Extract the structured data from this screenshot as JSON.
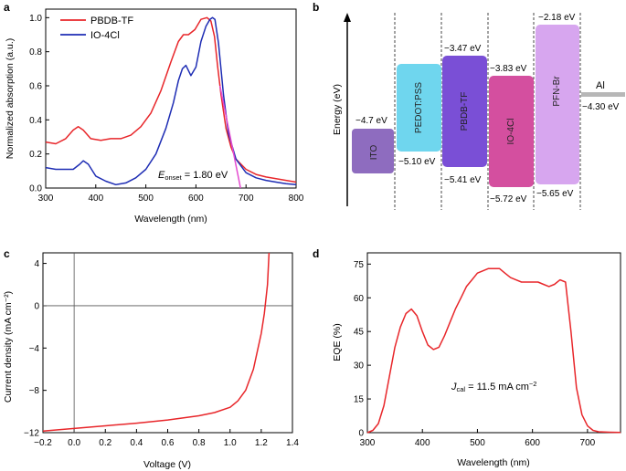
{
  "panels": {
    "a": "a",
    "b": "b",
    "c": "c",
    "d": "d"
  },
  "colors": {
    "pbdb": "#e8262a",
    "io4cl": "#1e2db4",
    "fit": "#e44bd0",
    "curve_c": "#e8262a",
    "curve_d": "#e8262a"
  },
  "chart_data": [
    {
      "panel": "a",
      "type": "line",
      "xlabel": "Wavelength (nm)",
      "ylabel": "Normalized absorption (a.u.)",
      "xlim": [
        300,
        800
      ],
      "ylim": [
        0,
        1.05
      ],
      "xticks": [
        "300",
        "400",
        "500",
        "600",
        "700",
        "800"
      ],
      "yticks": [
        "0.0",
        "0.2",
        "0.4",
        "0.6",
        "0.8",
        "1.0"
      ],
      "legend_position": "top-left",
      "annotation_main": "E",
      "annotation_sub": "onset",
      "annotation_value": " = 1.80 eV",
      "series": [
        {
          "name": "PBDB-TF",
          "x": [
            300,
            320,
            340,
            355,
            365,
            375,
            390,
            410,
            430,
            450,
            470,
            490,
            510,
            530,
            550,
            565,
            575,
            585,
            598,
            610,
            622,
            630,
            637,
            643,
            650,
            660,
            670,
            680,
            700,
            720,
            740,
            760,
            780,
            800
          ],
          "y": [
            0.27,
            0.26,
            0.29,
            0.34,
            0.36,
            0.34,
            0.29,
            0.28,
            0.29,
            0.29,
            0.31,
            0.36,
            0.44,
            0.57,
            0.74,
            0.86,
            0.9,
            0.9,
            0.93,
            0.99,
            1.0,
            0.98,
            0.89,
            0.72,
            0.55,
            0.35,
            0.24,
            0.17,
            0.11,
            0.08,
            0.065,
            0.055,
            0.045,
            0.035
          ]
        },
        {
          "name": "IO-4Cl",
          "x": [
            300,
            320,
            340,
            355,
            368,
            375,
            385,
            400,
            420,
            440,
            460,
            480,
            500,
            520,
            540,
            555,
            565,
            573,
            580,
            590,
            600,
            610,
            620,
            628,
            633,
            638,
            645,
            655,
            665,
            680,
            700,
            720,
            740,
            760,
            780,
            800
          ],
          "y": [
            0.12,
            0.11,
            0.11,
            0.11,
            0.14,
            0.16,
            0.14,
            0.07,
            0.04,
            0.02,
            0.03,
            0.06,
            0.11,
            0.2,
            0.35,
            0.5,
            0.63,
            0.7,
            0.72,
            0.66,
            0.71,
            0.86,
            0.95,
            0.99,
            1.0,
            0.99,
            0.85,
            0.55,
            0.32,
            0.17,
            0.09,
            0.06,
            0.045,
            0.035,
            0.025,
            0.02
          ]
        },
        {
          "name": "onset-fit",
          "x": [
            648,
            689
          ],
          "y": [
            0.6,
            0.0
          ]
        }
      ]
    },
    {
      "panel": "b",
      "type": "energy-level-diagram",
      "ylabel": "Energy (eV)",
      "electrode": "Al",
      "electrode_level": "−4.30 eV",
      "layers": [
        {
          "name": "ITO",
          "top": -4.7,
          "bottom": null,
          "top_label": "−4.7 eV",
          "bottom_label": "",
          "color": "#8e6cbf"
        },
        {
          "name": "PEDOT:PSS",
          "top": -5.1,
          "bottom": null,
          "top_label": "",
          "bottom_label": "−5.10 eV",
          "color": "#6fd6ee"
        },
        {
          "name": "PBDB-TF",
          "top": -3.47,
          "bottom": -5.41,
          "top_label": "−3.47 eV",
          "bottom_label": "−5.41 eV",
          "color": "#7a4fd6"
        },
        {
          "name": "IO-4Cl",
          "top": -3.83,
          "bottom": -5.72,
          "top_label": "−3.83 eV",
          "bottom_label": "−5.72 eV",
          "color": "#d44f9f"
        },
        {
          "name": "PFN-Br",
          "top": -2.18,
          "bottom": -5.65,
          "top_label": "−2.18 eV",
          "bottom_label": "−5.65 eV",
          "color": "#d7a6ef"
        }
      ]
    },
    {
      "panel": "c",
      "type": "line",
      "xlabel": "Voltage (V)",
      "ylabel": "Current density (mA cm⁻²)",
      "xlim": [
        -0.2,
        1.4
      ],
      "ylim": [
        -12,
        5
      ],
      "xticks": [
        "−0.2",
        "0.0",
        "0.2",
        "0.4",
        "0.6",
        "0.8",
        "1.0",
        "1.2",
        "1.4"
      ],
      "yticks": [
        "−12",
        "−8",
        "−4",
        "0",
        "4"
      ],
      "series": [
        {
          "name": "J-V",
          "x": [
            -0.2,
            0.0,
            0.2,
            0.4,
            0.6,
            0.8,
            0.9,
            1.0,
            1.05,
            1.1,
            1.15,
            1.2,
            1.22,
            1.24,
            1.25
          ],
          "y": [
            -11.85,
            -11.6,
            -11.35,
            -11.1,
            -10.8,
            -10.4,
            -10.1,
            -9.6,
            -9.0,
            -8.0,
            -6.0,
            -2.6,
            -0.7,
            2.0,
            5.0
          ]
        }
      ]
    },
    {
      "panel": "d",
      "type": "line",
      "xlabel": "Wavelength (nm)",
      "ylabel": "EQE (%)",
      "xlim": [
        300,
        760
      ],
      "ylim": [
        0,
        80
      ],
      "xticks": [
        "300",
        "400",
        "500",
        "600",
        "700"
      ],
      "yticks": [
        "0",
        "15",
        "30",
        "45",
        "60",
        "75"
      ],
      "annotation_main": "J",
      "annotation_sub": "cal",
      "annotation_value": " = 11.5 mA cm",
      "annotation_sup": "−2",
      "series": [
        {
          "name": "EQE",
          "x": [
            300,
            310,
            320,
            330,
            340,
            350,
            360,
            370,
            380,
            390,
            400,
            410,
            420,
            430,
            440,
            450,
            460,
            470,
            480,
            490,
            500,
            510,
            520,
            530,
            540,
            550,
            560,
            570,
            580,
            590,
            600,
            610,
            620,
            630,
            640,
            650,
            660,
            670,
            680,
            690,
            700,
            710,
            720,
            740,
            760
          ],
          "y": [
            0,
            1,
            4,
            12,
            25,
            38,
            47,
            53,
            55,
            52,
            45,
            39,
            37,
            38,
            43,
            49,
            55,
            60,
            65,
            68,
            71,
            72,
            73,
            73,
            73,
            71,
            69,
            68,
            67,
            67,
            67,
            67,
            66,
            65,
            66,
            68,
            67,
            45,
            20,
            8,
            3,
            1,
            0.4,
            0.2,
            0.1
          ]
        }
      ]
    }
  ]
}
